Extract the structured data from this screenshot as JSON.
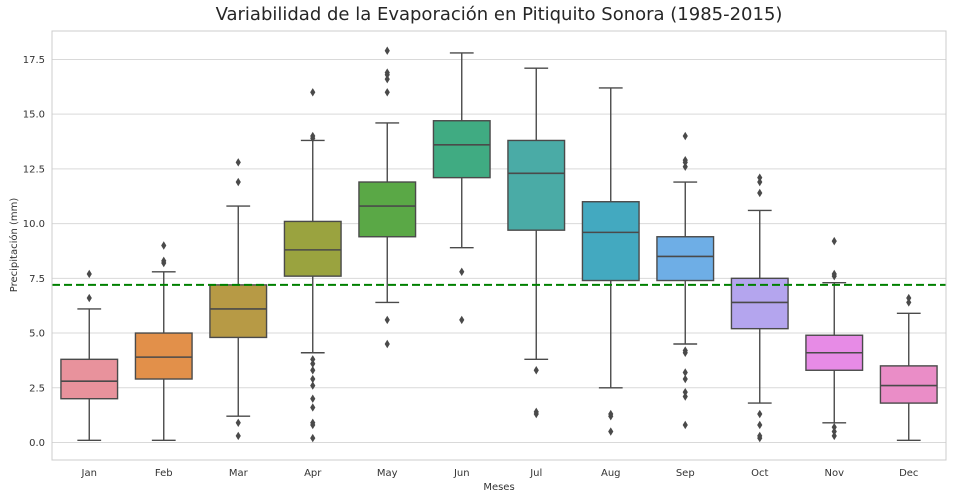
{
  "chart_data": {
    "type": "box",
    "title": "Variabilidad de la Evaporación en Pitiquito Sonora (1985-2015)",
    "xlabel": "Meses",
    "ylabel": "Precipitación (mm)",
    "ylim": [
      -0.8,
      18.8
    ],
    "yticks": [
      0.0,
      2.5,
      5.0,
      7.5,
      10.0,
      12.5,
      15.0,
      17.5
    ],
    "ytick_labels": [
      "0.0",
      "2.5",
      "5.0",
      "7.5",
      "10.0",
      "12.5",
      "15.0",
      "17.5"
    ],
    "grid": true,
    "reference_line": {
      "value": 7.2,
      "color": "#008000",
      "style": "dashed"
    },
    "categories": [
      "Jan",
      "Feb",
      "Mar",
      "Apr",
      "May",
      "Jun",
      "Jul",
      "Aug",
      "Sep",
      "Oct",
      "Nov",
      "Dec"
    ],
    "boxes": [
      {
        "label": "Jan",
        "color": "#e8929c",
        "whislo": 0.1,
        "q1": 2.0,
        "med": 2.8,
        "q3": 3.8,
        "whishi": 6.1,
        "fliers": [
          6.6,
          7.7
        ]
      },
      {
        "label": "Feb",
        "color": "#e2904a",
        "whislo": 0.1,
        "q1": 2.9,
        "med": 3.9,
        "q3": 5.0,
        "whishi": 7.8,
        "fliers": [
          8.2,
          8.3,
          9.0
        ]
      },
      {
        "label": "Mar",
        "color": "#b79a45",
        "whislo": 1.2,
        "q1": 4.8,
        "med": 6.1,
        "q3": 7.2,
        "whishi": 10.8,
        "fliers": [
          0.3,
          0.9,
          11.9,
          12.8
        ]
      },
      {
        "label": "Apr",
        "color": "#9aa33f",
        "whislo": 4.1,
        "q1": 7.6,
        "med": 8.8,
        "q3": 10.1,
        "whishi": 13.8,
        "fliers": [
          0.2,
          0.8,
          0.9,
          1.6,
          2.0,
          2.6,
          2.9,
          3.3,
          3.6,
          3.8,
          13.9,
          14.0,
          16.0
        ]
      },
      {
        "label": "May",
        "color": "#5aa846",
        "whislo": 6.4,
        "q1": 9.4,
        "med": 10.8,
        "q3": 11.9,
        "whishi": 14.6,
        "fliers": [
          4.5,
          5.6,
          16.0,
          16.6,
          16.8,
          16.9,
          17.9
        ]
      },
      {
        "label": "Jun",
        "color": "#40ab82",
        "whislo": 8.9,
        "q1": 12.1,
        "med": 13.6,
        "q3": 14.7,
        "whishi": 17.8,
        "fliers": [
          5.6,
          7.8
        ]
      },
      {
        "label": "Jul",
        "color": "#4aaba6",
        "whislo": 3.8,
        "q1": 9.7,
        "med": 12.3,
        "q3": 13.8,
        "whishi": 17.1,
        "fliers": [
          1.3,
          1.4,
          3.3
        ]
      },
      {
        "label": "Aug",
        "color": "#43a9c0",
        "whislo": 2.5,
        "q1": 7.4,
        "med": 9.6,
        "q3": 11.0,
        "whishi": 16.2,
        "fliers": [
          0.5,
          1.2,
          1.3
        ]
      },
      {
        "label": "Sep",
        "color": "#6eaee6",
        "whislo": 4.5,
        "q1": 7.4,
        "med": 8.5,
        "q3": 9.4,
        "whishi": 11.9,
        "fliers": [
          0.8,
          2.1,
          2.3,
          2.9,
          3.2,
          4.1,
          4.2,
          12.6,
          12.8,
          12.9,
          14.0
        ]
      },
      {
        "label": "Oct",
        "color": "#b4a5ee",
        "whislo": 1.8,
        "q1": 5.2,
        "med": 6.4,
        "q3": 7.5,
        "whishi": 10.6,
        "fliers": [
          0.2,
          0.3,
          0.8,
          1.3,
          11.4,
          11.9,
          12.1
        ]
      },
      {
        "label": "Nov",
        "color": "#e78be6",
        "whislo": 0.9,
        "q1": 3.3,
        "med": 4.1,
        "q3": 4.9,
        "whishi": 7.3,
        "fliers": [
          0.3,
          0.5,
          0.7,
          7.6,
          7.7,
          9.2
        ]
      },
      {
        "label": "Dec",
        "color": "#ea8dc7",
        "whislo": 0.1,
        "q1": 1.8,
        "med": 2.6,
        "q3": 3.5,
        "whishi": 5.9,
        "fliers": [
          6.4,
          6.6
        ]
      }
    ]
  }
}
